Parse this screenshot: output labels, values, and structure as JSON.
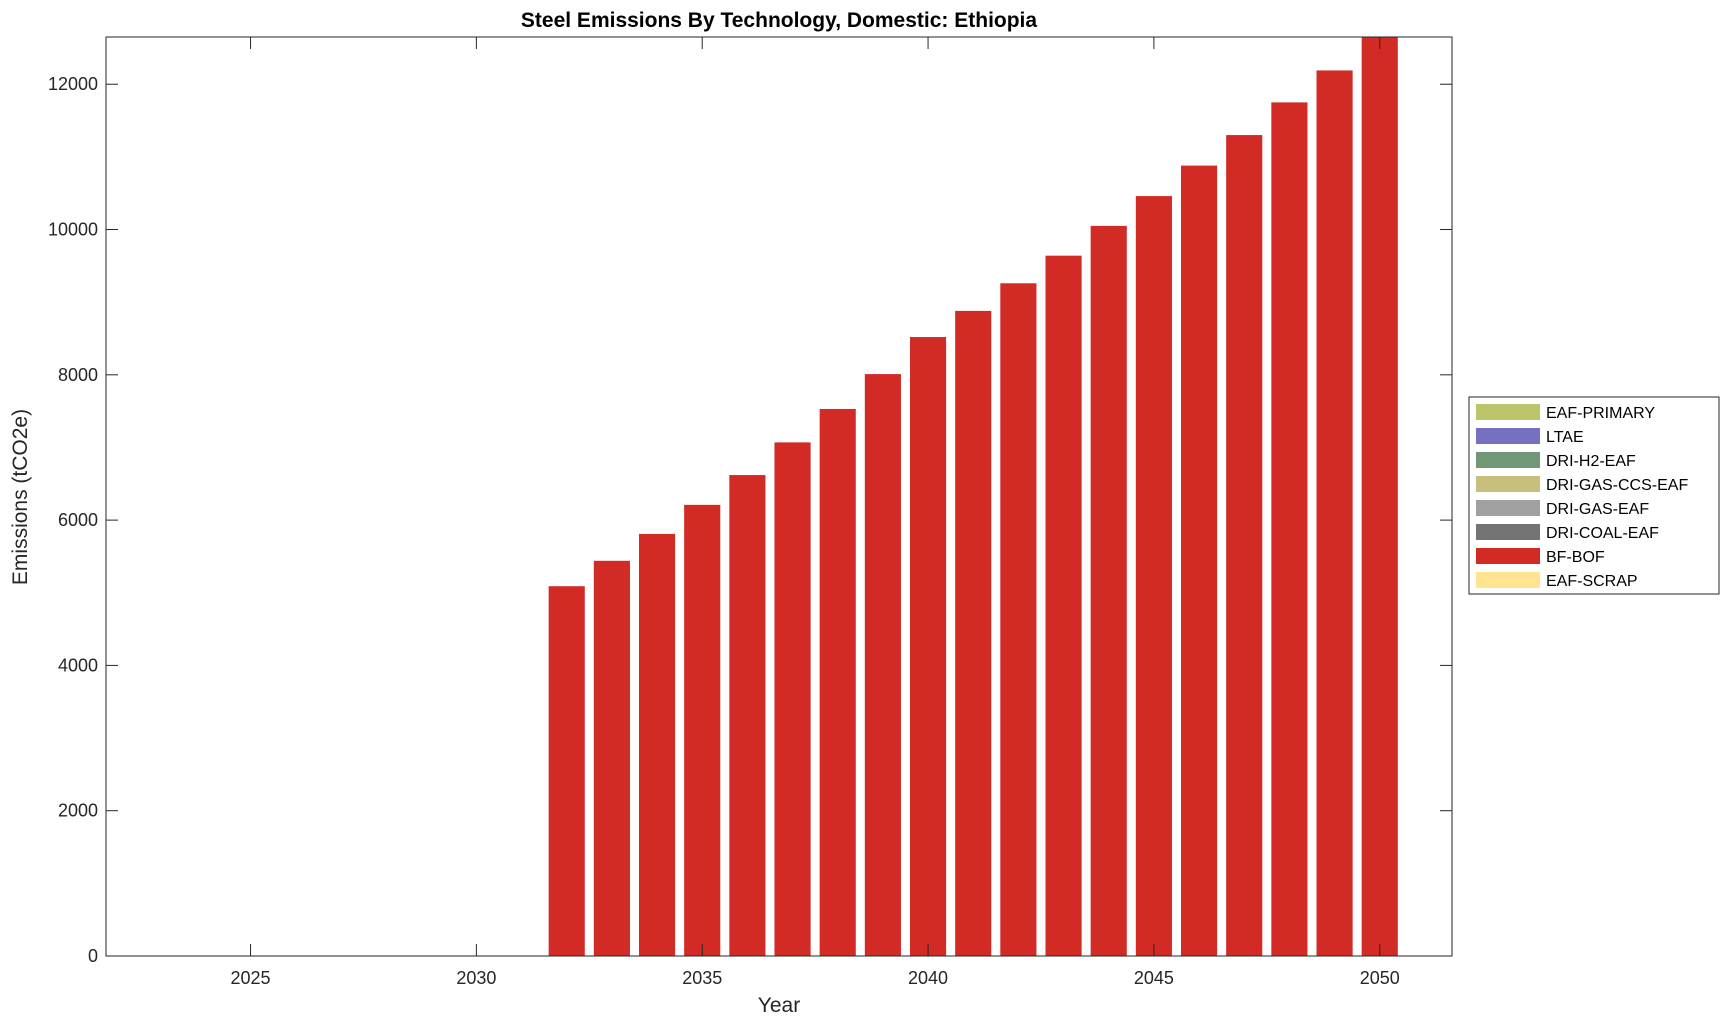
{
  "chart_data": {
    "type": "bar",
    "title": "Steel Emissions By Technology, Domestic: Ethiopia",
    "xlabel": "Year",
    "ylabel": "Emissions (tCO2e)",
    "xlim": [
      2021.8,
      2051.6
    ],
    "ylim": [
      0,
      12650
    ],
    "xticks": [
      2025,
      2030,
      2035,
      2040,
      2045,
      2050
    ],
    "yticks": [
      0,
      2000,
      4000,
      6000,
      8000,
      10000,
      12000
    ],
    "stacked": true,
    "grid": false,
    "legend_placement": "right, outside",
    "x": [
      2032,
      2033,
      2034,
      2035,
      2036,
      2037,
      2038,
      2039,
      2040,
      2041,
      2042,
      2043,
      2044,
      2045,
      2046,
      2047,
      2048,
      2049,
      2050
    ],
    "series": [
      {
        "name": "EAF-PRIMARY",
        "color": "#bdc56b",
        "values": [
          0,
          0,
          0,
          0,
          0,
          0,
          0,
          0,
          0,
          0,
          0,
          0,
          0,
          0,
          0,
          0,
          0,
          0,
          0
        ]
      },
      {
        "name": "LTAE",
        "color": "#7570bf",
        "values": [
          0,
          0,
          0,
          0,
          0,
          0,
          0,
          0,
          0,
          0,
          0,
          0,
          0,
          0,
          0,
          0,
          0,
          0,
          0
        ]
      },
      {
        "name": "DRI-H2-EAF",
        "color": "#729879",
        "values": [
          0,
          0,
          0,
          0,
          0,
          0,
          0,
          0,
          0,
          0,
          0,
          0,
          0,
          0,
          0,
          0,
          0,
          0,
          0
        ]
      },
      {
        "name": "DRI-GAS-CCS-EAF",
        "color": "#c6bf7e",
        "values": [
          0,
          0,
          0,
          0,
          0,
          0,
          0,
          0,
          0,
          0,
          0,
          0,
          0,
          0,
          0,
          0,
          0,
          0,
          0
        ]
      },
      {
        "name": "DRI-GAS-EAF",
        "color": "#a0a0a0",
        "values": [
          0,
          0,
          0,
          0,
          0,
          0,
          0,
          0,
          0,
          0,
          0,
          0,
          0,
          0,
          0,
          0,
          0,
          0,
          0
        ]
      },
      {
        "name": "DRI-COAL-EAF",
        "color": "#747474",
        "values": [
          0,
          0,
          0,
          0,
          0,
          0,
          0,
          0,
          0,
          0,
          0,
          0,
          0,
          0,
          0,
          0,
          0,
          0,
          0
        ]
      },
      {
        "name": "BF-BOF",
        "color": "#d22a25",
        "values": [
          5090,
          5440,
          5810,
          6210,
          6620,
          7070,
          7530,
          8010,
          8520,
          8880,
          9260,
          9640,
          10050,
          10460,
          10880,
          11300,
          11750,
          12190,
          12650
        ]
      },
      {
        "name": "EAF-SCRAP",
        "color": "#ffe491",
        "values": [
          0,
          0,
          0,
          0,
          0,
          0,
          0,
          0,
          0,
          0,
          0,
          0,
          0,
          0,
          0,
          0,
          0,
          0,
          0
        ]
      }
    ]
  }
}
